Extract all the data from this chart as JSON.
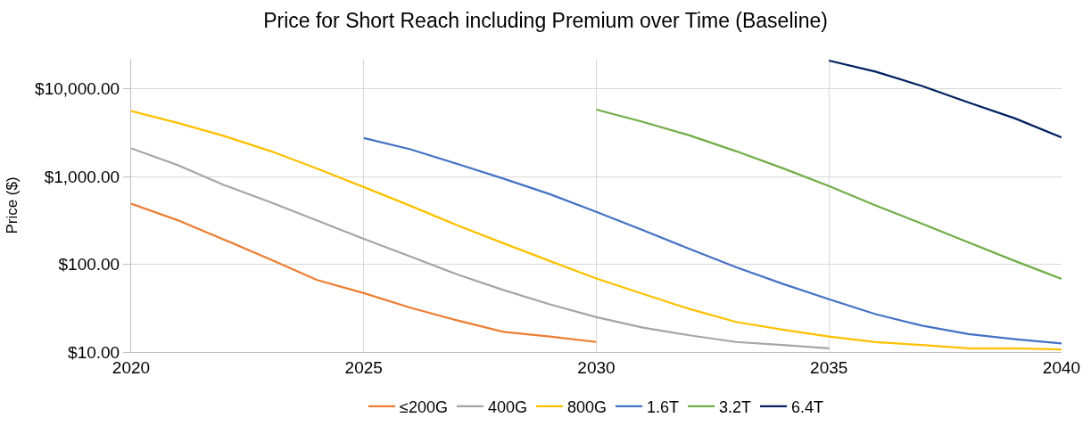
{
  "chart_data": {
    "type": "line",
    "title": "Price for Short Reach including Premium over Time (Baseline)",
    "ylabel": "Price ($)",
    "log": "y",
    "grid": true,
    "legend": "bottom",
    "line_style": "solid",
    "marker": "none",
    "xlim": [
      2020,
      2040
    ],
    "xticks": [
      2020,
      2025,
      2030,
      2035,
      2040
    ],
    "ylim": [
      10,
      22000
    ],
    "yticks": [
      {
        "value": 10,
        "label": "$10.00"
      },
      {
        "value": 100,
        "label": "$100.00"
      },
      {
        "value": 1000,
        "label": "$1,000.00"
      },
      {
        "value": 10000,
        "label": "$10,000.00"
      }
    ],
    "series": [
      {
        "name": "≤200G",
        "color": "#ed7d31",
        "x": [
          2020,
          2021,
          2022,
          2023,
          2024,
          2025,
          2026,
          2027,
          2028,
          2029,
          2030
        ],
        "values": [
          490,
          318,
          191,
          113,
          66,
          47,
          32,
          23,
          17,
          15,
          13
        ]
      },
      {
        "name": "400G",
        "color": "#a5a5a5",
        "x": [
          2020,
          2021,
          2022,
          2023,
          2024,
          2025,
          2026,
          2027,
          2028,
          2029,
          2030,
          2031,
          2032,
          2033,
          2034,
          2035
        ],
        "values": [
          2100,
          1350,
          800,
          510,
          315,
          195,
          123,
          77,
          51,
          35,
          25,
          19,
          15.5,
          13,
          12,
          11
        ]
      },
      {
        "name": "800G",
        "color": "#ffc000",
        "x": [
          2020,
          2021,
          2022,
          2023,
          2024,
          2025,
          2026,
          2027,
          2028,
          2029,
          2030,
          2031,
          2032,
          2033,
          2034,
          2035,
          2036,
          2037,
          2038,
          2039,
          2040
        ],
        "values": [
          5600,
          4100,
          2900,
          1950,
          1230,
          760,
          465,
          280,
          174,
          109,
          69,
          46,
          31,
          22,
          18,
          15,
          13,
          12,
          11,
          11,
          10.7
        ]
      },
      {
        "name": "1.6T",
        "color": "#4472c4",
        "x": [
          2025,
          2026,
          2027,
          2028,
          2029,
          2030,
          2031,
          2032,
          2033,
          2034,
          2035,
          2036,
          2037,
          2038,
          2039,
          2040
        ],
        "values": [
          2750,
          2050,
          1400,
          950,
          630,
          395,
          245,
          150,
          93,
          60,
          40,
          27,
          20,
          16,
          14,
          12.5
        ]
      },
      {
        "name": "3.2T",
        "color": "#70ad47",
        "x": [
          2030,
          2031,
          2032,
          2033,
          2034,
          2035,
          2036,
          2037,
          2038,
          2039,
          2040
        ],
        "values": [
          5800,
          4200,
          2950,
          1950,
          1250,
          780,
          470,
          290,
          178,
          109,
          68
        ]
      },
      {
        "name": "6.4T",
        "color": "#002060",
        "x": [
          2035,
          2036,
          2037,
          2038,
          2039,
          2040
        ],
        "values": [
          21000,
          15700,
          10800,
          7000,
          4600,
          2800
        ]
      }
    ]
  }
}
